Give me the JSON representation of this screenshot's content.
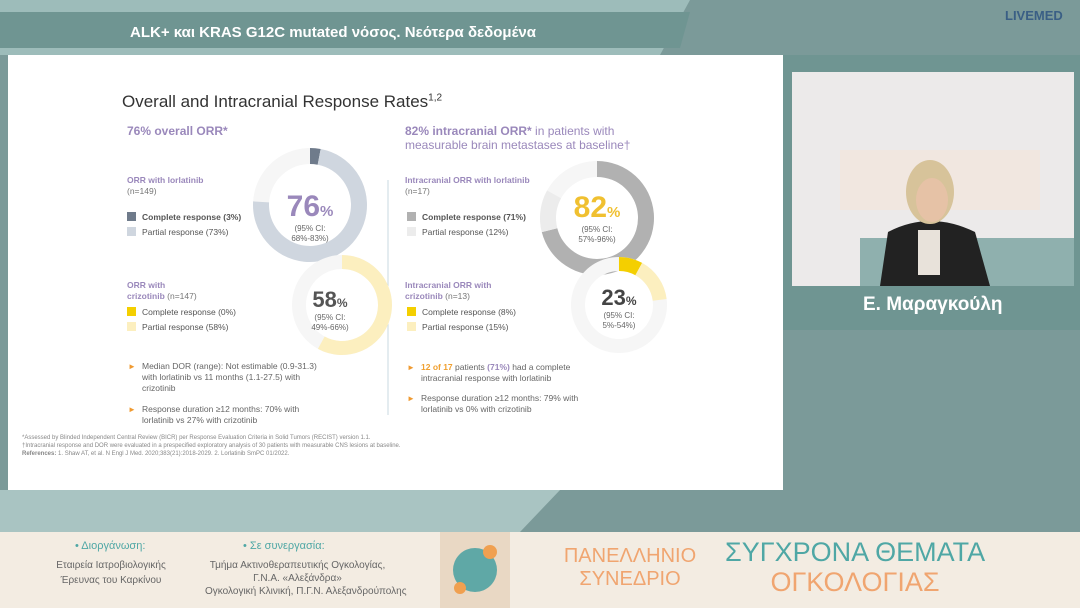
{
  "header": {
    "title": "ALK+ και KRAS G12C mutated νόσος. Νεότερα δεδομένα",
    "brand": "LIVEMED"
  },
  "slide": {
    "title": "Overall and Intracranial Response Rates",
    "title_sup": "1,2",
    "left": {
      "heading": "76% overall ORR*",
      "donuts": [
        {
          "label": "ORR with  lorlatinib",
          "n": "(n=149)",
          "center": "76",
          "unit": "%",
          "ci": [
            "(95% CI:",
            "68%-83%)"
          ],
          "segments": [
            {
              "name": "Complete response (3%)",
              "value": 3,
              "color": "#6f7b8b"
            },
            {
              "name": "Partial response (73%)",
              "value": 73,
              "color": "#cfd6df"
            }
          ]
        },
        {
          "label": "ORR with",
          "drug": "crizotinib",
          "n": "(n=147)",
          "center": "58",
          "unit": "%",
          "ci": [
            "(95% CI:",
            "49%-66%)"
          ],
          "segments": [
            {
              "name": "Complete response (0%)",
              "value": 0,
              "color": "#f4cf00"
            },
            {
              "name": "Partial response (58%)",
              "value": 58,
              "color": "#fcefbf"
            }
          ]
        }
      ],
      "bullets": [
        "Median DOR (range): Not estimable (0.9-31.3) with lorlatinib vs 11 months (1.1-27.5) with crizotinib",
        "Response duration ≥12 months: 70% with lorlatinib vs 27% with crizotinib"
      ]
    },
    "right": {
      "heading": "82% intracranial ORR*",
      "heading_rest": " in patients with measurable brain metastases at baseline†",
      "donuts": [
        {
          "label": "Intracranial ORR with lorlatinib",
          "n": "(n=17)",
          "center": "82",
          "unit": "%",
          "ci": [
            "(95% CI:",
            "57%-96%)"
          ],
          "segments": [
            {
              "name": "Complete response (71%)",
              "value": 71,
              "color": "#b1b1b1"
            },
            {
              "name": "Partial response (12%)",
              "value": 12,
              "color": "#ececec"
            }
          ]
        },
        {
          "label": "Intracranial ORR with",
          "drug": "crizotinib",
          "n": "(n=13)",
          "center": "23",
          "unit": "%",
          "ci": [
            "(95% CI:",
            "5%-54%)"
          ],
          "segments": [
            {
              "name": "Complete response (8%)",
              "value": 8,
              "color": "#f4cf00"
            },
            {
              "name": "Partial response (15%)",
              "value": 15,
              "color": "#fcefbf"
            }
          ]
        }
      ],
      "bullet1": [
        "12 of 17",
        " patients ",
        "(71%)",
        " had a complete intracranial response with lorlatinib"
      ],
      "bullet2": "Response duration ≥12 months: 79% with lorlatinib vs 0% with crizotinib"
    },
    "footnotes": [
      "*Assessed by Blinded Independent Central Review (BICR) per Response Evaluation Criteria in Solid Tumors (RECIST) version 1.1.",
      "†Intracranial response and DOR were evaluated in a prespecified exploratory analysis of 30 patients with measurable CNS lesions at baseline."
    ],
    "references_label": "References:",
    "references": " 1. Shaw AT, et al. N Engl J Med. 2020;383(21):2018-2029. 2. Lorlatinib SmPC 01/2022."
  },
  "speaker": {
    "name": "Ε. Μαραγκούλη"
  },
  "footer": {
    "organizer_label": "• Διοργάνωση:",
    "organizer": [
      "Εταιρεία Ιατροβιολογικής",
      "Έρευνας του Καρκίνου"
    ],
    "partner_label": "• Σε συνεργασία:",
    "partner": [
      "Τμήμα Ακτινοθεραπευτικής Ογκολογίας,",
      "Γ.Ν.Α. «Αλεξάνδρα»",
      "Ογκολογική Κλινική,  Π.Γ.Ν. Αλεξανδρούπολης"
    ],
    "event": [
      "ΠΑΝΕΛΛΗΝΙΟ",
      "ΣΥΝΕΔΡΙΟ"
    ],
    "event_title": [
      "ΣΥΓΧΡΟΝΑ ΘΕΜΑΤΑ",
      "ΟΓΚΟΛΟΓΙΑΣ"
    ]
  }
}
